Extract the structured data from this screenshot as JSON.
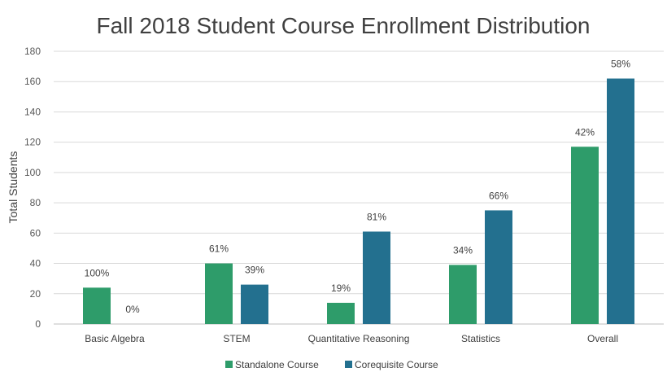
{
  "chart_data": {
    "type": "bar",
    "title": "Fall 2018 Student Course Enrollment Distribution",
    "xlabel": "",
    "ylabel": "Total Students",
    "ylim": [
      0,
      180
    ],
    "yticks": [
      0,
      20,
      40,
      60,
      80,
      100,
      120,
      140,
      160,
      180
    ],
    "grid": true,
    "legend_position": "bottom",
    "categories": [
      "Basic Algebra",
      "STEM",
      "Quantitative Reasoning",
      "Statistics",
      "Overall"
    ],
    "series": [
      {
        "name": "Standalone Course",
        "color": "#2e9c6a",
        "values": [
          24,
          40,
          14,
          39,
          117
        ],
        "labels": [
          "100%",
          "61%",
          "19%",
          "34%",
          "42%"
        ]
      },
      {
        "name": "Corequisite Course",
        "color": "#23708f",
        "values": [
          0,
          26,
          61,
          75,
          162
        ],
        "labels": [
          "0%",
          "39%",
          "81%",
          "66%",
          "58%"
        ]
      }
    ]
  }
}
